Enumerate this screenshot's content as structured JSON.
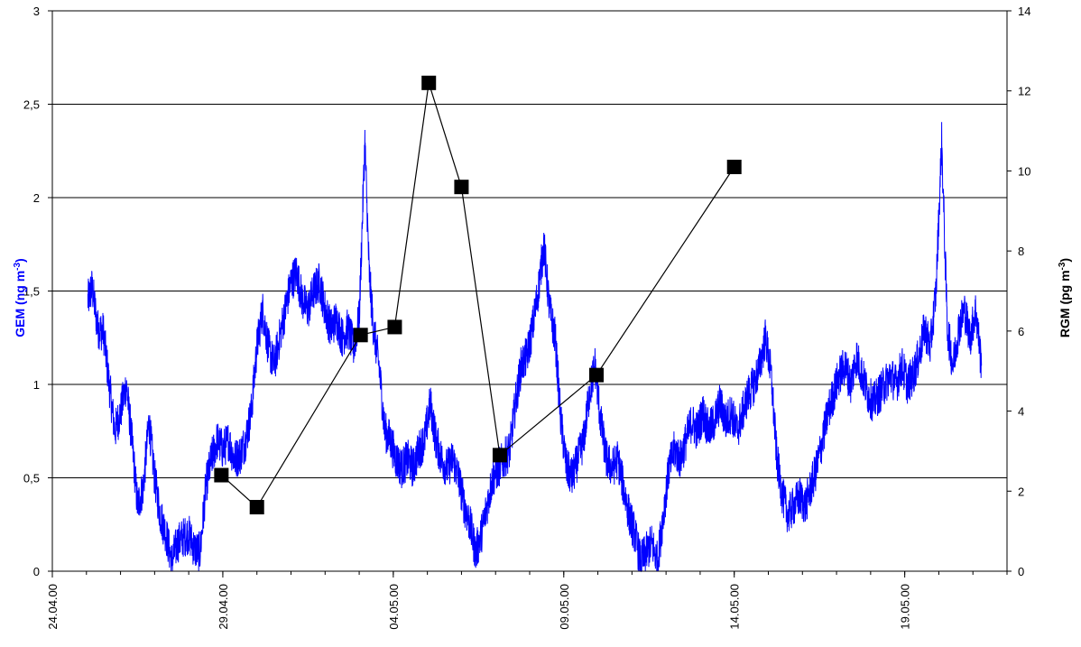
{
  "chart_data": {
    "type": "line",
    "title": "",
    "grid": true,
    "colors": {
      "gem": "#0000ff",
      "rgm": "#000000",
      "grid": "#000000"
    },
    "x_axis": {
      "type": "date",
      "range": [
        "2000-04-24",
        "2000-05-22"
      ],
      "tick_labels": [
        "24.04.00",
        "29.04.00",
        "04.05.00",
        "09.05.00",
        "14.05.00",
        "19.05.00"
      ],
      "tick_dates": [
        "2000-04-24",
        "2000-04-29",
        "2000-05-04",
        "2000-05-09",
        "2000-05-14",
        "2000-05-19"
      ]
    },
    "y_left": {
      "label": "GEM (ng m",
      "label_sup": "-3",
      "label_end": ")",
      "range": [
        0,
        3
      ],
      "ticks": [
        0,
        0.5,
        1,
        1.5,
        2,
        2.5,
        3
      ],
      "tick_labels": [
        "0",
        "0,5",
        "1",
        "1,5",
        "2",
        "2,5",
        "3"
      ]
    },
    "y_right": {
      "label": "RGM (pg m",
      "label_sup": "-3",
      "label_end": ")",
      "range": [
        0,
        14
      ],
      "ticks": [
        0,
        2,
        4,
        6,
        8,
        10,
        12,
        14
      ],
      "tick_labels": [
        "0",
        "2",
        "4",
        "6",
        "8",
        "10",
        "12",
        "14"
      ]
    },
    "series": [
      {
        "key": "GEM",
        "axis": "left",
        "style": "line",
        "points": [
          [
            "2000-04-25 01:00",
            1.45
          ],
          [
            "2000-04-25 04:00",
            1.52
          ],
          [
            "2000-04-25 08:00",
            1.3
          ],
          [
            "2000-04-25 12:00",
            1.28
          ],
          [
            "2000-04-25 16:00",
            1.0
          ],
          [
            "2000-04-25 20:00",
            0.75
          ],
          [
            "2000-04-26 00:00",
            0.85
          ],
          [
            "2000-04-26 04:00",
            1.0
          ],
          [
            "2000-04-26 08:00",
            0.7
          ],
          [
            "2000-04-26 12:00",
            0.35
          ],
          [
            "2000-04-26 16:00",
            0.45
          ],
          [
            "2000-04-26 20:00",
            0.8
          ],
          [
            "2000-04-27 00:00",
            0.5
          ],
          [
            "2000-04-27 04:00",
            0.3
          ],
          [
            "2000-04-27 08:00",
            0.2
          ],
          [
            "2000-04-27 12:00",
            0.05
          ],
          [
            "2000-04-27 16:00",
            0.15
          ],
          [
            "2000-04-27 20:00",
            0.18
          ],
          [
            "2000-04-28 00:00",
            0.2
          ],
          [
            "2000-04-28 04:00",
            0.12
          ],
          [
            "2000-04-28 08:00",
            0.1
          ],
          [
            "2000-04-28 12:00",
            0.45
          ],
          [
            "2000-04-28 16:00",
            0.6
          ],
          [
            "2000-04-28 20:00",
            0.7
          ],
          [
            "2000-04-29 00:00",
            0.65
          ],
          [
            "2000-04-29 04:00",
            0.7
          ],
          [
            "2000-04-29 08:00",
            0.6
          ],
          [
            "2000-04-29 12:00",
            0.62
          ],
          [
            "2000-04-29 16:00",
            0.7
          ],
          [
            "2000-04-29 20:00",
            0.85
          ],
          [
            "2000-04-30 00:00",
            1.2
          ],
          [
            "2000-04-30 04:00",
            1.4
          ],
          [
            "2000-04-30 08:00",
            1.2
          ],
          [
            "2000-04-30 12:00",
            1.1
          ],
          [
            "2000-04-30 16:00",
            1.25
          ],
          [
            "2000-04-30 20:00",
            1.4
          ],
          [
            "2000-05-01 00:00",
            1.55
          ],
          [
            "2000-05-01 04:00",
            1.6
          ],
          [
            "2000-05-01 08:00",
            1.45
          ],
          [
            "2000-05-01 12:00",
            1.4
          ],
          [
            "2000-05-01 16:00",
            1.5
          ],
          [
            "2000-05-01 20:00",
            1.55
          ],
          [
            "2000-05-02 00:00",
            1.4
          ],
          [
            "2000-05-02 04:00",
            1.3
          ],
          [
            "2000-05-02 08:00",
            1.35
          ],
          [
            "2000-05-02 12:00",
            1.25
          ],
          [
            "2000-05-02 16:00",
            1.3
          ],
          [
            "2000-05-02 20:00",
            1.2
          ],
          [
            "2000-05-03 00:00",
            1.35
          ],
          [
            "2000-05-03 04:00",
            2.3
          ],
          [
            "2000-05-03 07:00",
            1.6
          ],
          [
            "2000-05-03 10:00",
            1.3
          ],
          [
            "2000-05-03 14:00",
            1.1
          ],
          [
            "2000-05-03 18:00",
            0.75
          ],
          [
            "2000-05-03 22:00",
            0.7
          ],
          [
            "2000-05-04 02:00",
            0.6
          ],
          [
            "2000-05-04 06:00",
            0.55
          ],
          [
            "2000-05-04 10:00",
            0.6
          ],
          [
            "2000-05-04 14:00",
            0.55
          ],
          [
            "2000-05-04 18:00",
            0.65
          ],
          [
            "2000-05-04 22:00",
            0.7
          ],
          [
            "2000-05-05 02:00",
            0.9
          ],
          [
            "2000-05-05 06:00",
            0.7
          ],
          [
            "2000-05-05 10:00",
            0.6
          ],
          [
            "2000-05-05 14:00",
            0.55
          ],
          [
            "2000-05-05 18:00",
            0.6
          ],
          [
            "2000-05-05 22:00",
            0.5
          ],
          [
            "2000-05-06 02:00",
            0.35
          ],
          [
            "2000-05-06 06:00",
            0.25
          ],
          [
            "2000-05-06 10:00",
            0.1
          ],
          [
            "2000-05-06 14:00",
            0.2
          ],
          [
            "2000-05-06 18:00",
            0.35
          ],
          [
            "2000-05-06 22:00",
            0.5
          ],
          [
            "2000-05-07 02:00",
            0.55
          ],
          [
            "2000-05-07 06:00",
            0.6
          ],
          [
            "2000-05-07 10:00",
            0.65
          ],
          [
            "2000-05-07 14:00",
            0.9
          ],
          [
            "2000-05-07 18:00",
            1.1
          ],
          [
            "2000-05-07 22:00",
            1.15
          ],
          [
            "2000-05-08 02:00",
            1.3
          ],
          [
            "2000-05-08 06:00",
            1.5
          ],
          [
            "2000-05-08 10:00",
            1.75
          ],
          [
            "2000-05-08 14:00",
            1.4
          ],
          [
            "2000-05-08 18:00",
            1.25
          ],
          [
            "2000-05-08 22:00",
            0.8
          ],
          [
            "2000-05-09 02:00",
            0.55
          ],
          [
            "2000-05-09 06:00",
            0.5
          ],
          [
            "2000-05-09 10:00",
            0.6
          ],
          [
            "2000-05-09 14:00",
            0.7
          ],
          [
            "2000-05-09 18:00",
            0.95
          ],
          [
            "2000-05-09 22:00",
            1.1
          ],
          [
            "2000-05-10 02:00",
            0.8
          ],
          [
            "2000-05-10 06:00",
            0.6
          ],
          [
            "2000-05-10 10:00",
            0.55
          ],
          [
            "2000-05-10 14:00",
            0.6
          ],
          [
            "2000-05-10 18:00",
            0.45
          ],
          [
            "2000-05-10 22:00",
            0.3
          ],
          [
            "2000-05-11 02:00",
            0.2
          ],
          [
            "2000-05-11 06:00",
            0.05
          ],
          [
            "2000-05-11 10:00",
            0.1
          ],
          [
            "2000-05-11 14:00",
            0.15
          ],
          [
            "2000-05-11 18:00",
            0.05
          ],
          [
            "2000-05-11 22:00",
            0.3
          ],
          [
            "2000-05-12 02:00",
            0.55
          ],
          [
            "2000-05-12 06:00",
            0.65
          ],
          [
            "2000-05-12 10:00",
            0.6
          ],
          [
            "2000-05-12 14:00",
            0.7
          ],
          [
            "2000-05-12 18:00",
            0.8
          ],
          [
            "2000-05-12 22:00",
            0.75
          ],
          [
            "2000-05-13 02:00",
            0.85
          ],
          [
            "2000-05-13 06:00",
            0.75
          ],
          [
            "2000-05-13 10:00",
            0.8
          ],
          [
            "2000-05-13 14:00",
            0.9
          ],
          [
            "2000-05-13 18:00",
            0.8
          ],
          [
            "2000-05-13 22:00",
            0.85
          ],
          [
            "2000-05-14 02:00",
            0.75
          ],
          [
            "2000-05-14 06:00",
            0.85
          ],
          [
            "2000-05-14 10:00",
            0.95
          ],
          [
            "2000-05-14 14:00",
            1.0
          ],
          [
            "2000-05-14 18:00",
            1.1
          ],
          [
            "2000-05-14 22:00",
            1.25
          ],
          [
            "2000-05-15 02:00",
            1.05
          ],
          [
            "2000-05-15 06:00",
            0.6
          ],
          [
            "2000-05-15 10:00",
            0.4
          ],
          [
            "2000-05-15 14:00",
            0.3
          ],
          [
            "2000-05-15 18:00",
            0.35
          ],
          [
            "2000-05-15 22:00",
            0.4
          ],
          [
            "2000-05-16 02:00",
            0.35
          ],
          [
            "2000-05-16 06:00",
            0.45
          ],
          [
            "2000-05-16 10:00",
            0.55
          ],
          [
            "2000-05-16 14:00",
            0.7
          ],
          [
            "2000-05-16 18:00",
            0.85
          ],
          [
            "2000-05-16 22:00",
            0.95
          ],
          [
            "2000-05-17 02:00",
            1.05
          ],
          [
            "2000-05-17 06:00",
            1.1
          ],
          [
            "2000-05-17 10:00",
            1.0
          ],
          [
            "2000-05-17 14:00",
            1.15
          ],
          [
            "2000-05-17 18:00",
            1.05
          ],
          [
            "2000-05-17 22:00",
            0.95
          ],
          [
            "2000-05-18 02:00",
            0.9
          ],
          [
            "2000-05-18 06:00",
            0.95
          ],
          [
            "2000-05-18 10:00",
            1.0
          ],
          [
            "2000-05-18 14:00",
            1.05
          ],
          [
            "2000-05-18 18:00",
            1.0
          ],
          [
            "2000-05-18 22:00",
            1.1
          ],
          [
            "2000-05-19 02:00",
            1.0
          ],
          [
            "2000-05-19 06:00",
            1.05
          ],
          [
            "2000-05-19 10:00",
            1.15
          ],
          [
            "2000-05-19 14:00",
            1.3
          ],
          [
            "2000-05-19 18:00",
            1.2
          ],
          [
            "2000-05-19 22:00",
            1.5
          ],
          [
            "2000-05-20 02:00",
            2.3
          ],
          [
            "2000-05-20 06:00",
            1.3
          ],
          [
            "2000-05-20 10:00",
            1.1
          ],
          [
            "2000-05-20 14:00",
            1.3
          ],
          [
            "2000-05-20 18:00",
            1.4
          ],
          [
            "2000-05-20 22:00",
            1.25
          ],
          [
            "2000-05-21 02:00",
            1.4
          ],
          [
            "2000-05-21 06:00",
            1.1
          ]
        ]
      },
      {
        "key": "RGM",
        "axis": "right",
        "style": "line-markers",
        "marker": "square",
        "points": [
          [
            "2000-04-28 23:00",
            2.4
          ],
          [
            "2000-04-30 00:00",
            1.6
          ],
          [
            "2000-05-03 01:00",
            5.9
          ],
          [
            "2000-05-04 01:00",
            6.1
          ],
          [
            "2000-05-05 01:00",
            12.2
          ],
          [
            "2000-05-06 00:00",
            9.6
          ],
          [
            "2000-05-07 03:00",
            2.9
          ],
          [
            "2000-05-09 23:00",
            4.9
          ],
          [
            "2000-05-14 00:00",
            10.1
          ]
        ]
      }
    ]
  }
}
